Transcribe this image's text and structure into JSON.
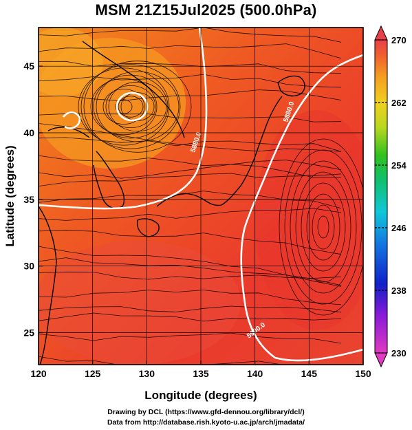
{
  "title": "MSM 21Z15Jul2025 (500.0hPa)",
  "map": {
    "xlabel": "Longitude (degrees)",
    "ylabel": "Latitude  (degrees)",
    "xticks": [
      "120",
      "125",
      "130",
      "135",
      "140",
      "145",
      "150"
    ],
    "yticks": [
      "25",
      "30",
      "35",
      "40",
      "45"
    ],
    "xlim": [
      120,
      150
    ],
    "ylim": [
      22.6,
      47.9
    ],
    "field": "temperature (shaded) with wind streamlines",
    "contours": [
      {
        "label": "5880.0",
        "level": 5880
      },
      {
        "label": "5880.0",
        "level": 5880
      },
      {
        "label": "5900.0",
        "level": 5900
      }
    ],
    "colorbar": {
      "labels": [
        "270",
        "262",
        "254",
        "246",
        "238",
        "230"
      ],
      "min": 230,
      "max": 270,
      "extend": "both"
    }
  },
  "credits": {
    "line1": "Drawing by DCL (https://www.gfd-dennou.org/library/dcl/)",
    "line2": "Data from http://database.rish.kyoto-u.ac.jp/arch/jmadata/"
  }
}
